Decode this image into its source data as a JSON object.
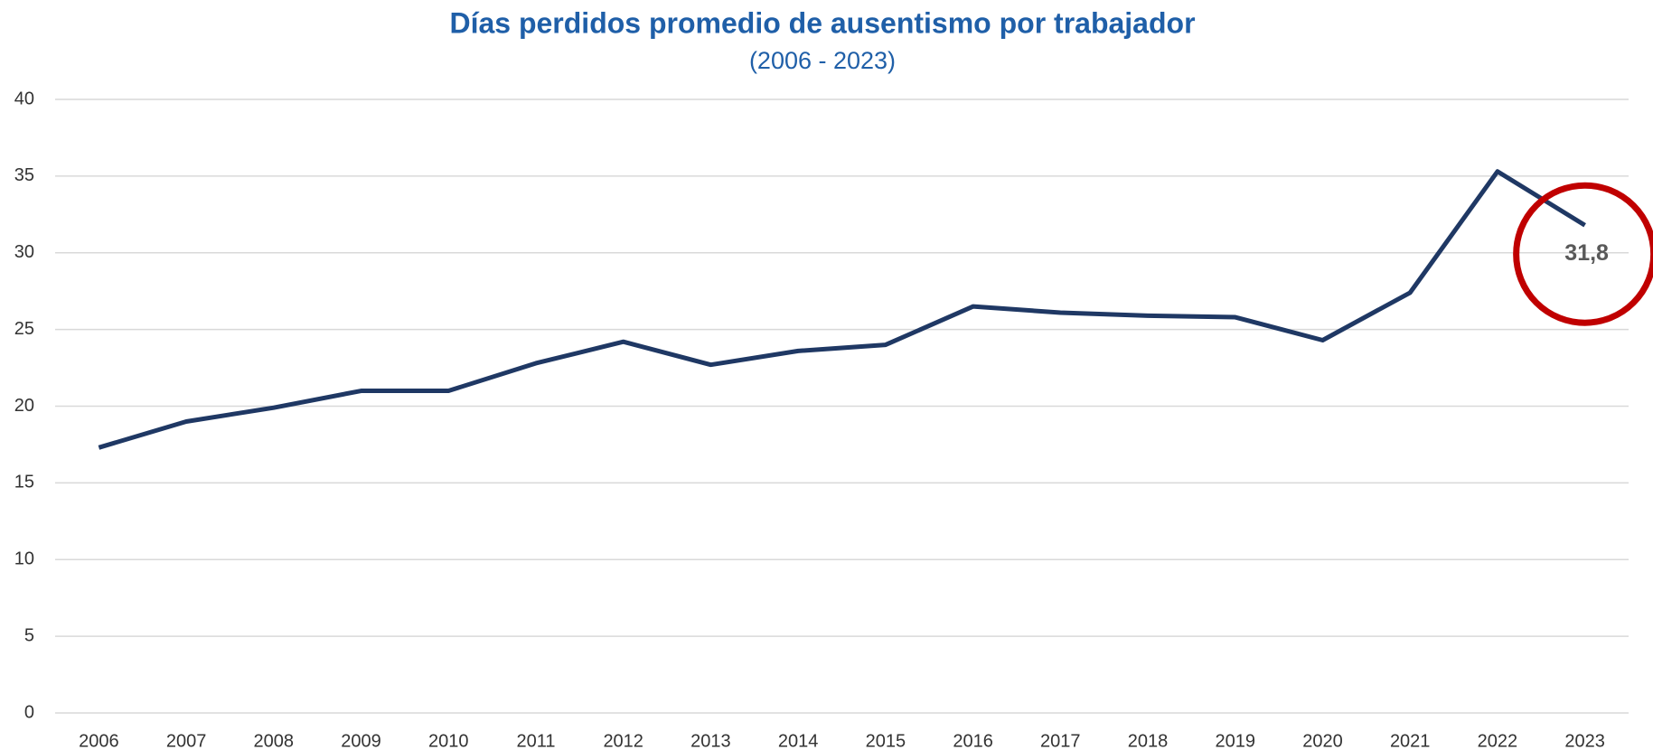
{
  "chart_data": {
    "type": "line",
    "title": "Días perdidos promedio de ausentismo por trabajador",
    "subtitle": "(2006 - 2023)",
    "categories": [
      "2006",
      "2007",
      "2008",
      "2009",
      "2010",
      "2011",
      "2012",
      "2013",
      "2014",
      "2015",
      "2016",
      "2017",
      "2018",
      "2019",
      "2020",
      "2021",
      "2022",
      "2023"
    ],
    "series": [
      {
        "name": "Días perdidos promedio",
        "color": "#1f3864",
        "values": [
          17.3,
          19.0,
          19.9,
          21.0,
          21.0,
          22.8,
          24.2,
          22.7,
          23.6,
          24.0,
          26.5,
          26.1,
          25.9,
          25.8,
          24.3,
          27.4,
          35.3,
          31.8
        ],
        "value_labels": [
          null,
          null,
          null,
          null,
          null,
          null,
          null,
          null,
          null,
          null,
          null,
          null,
          null,
          null,
          null,
          null,
          null,
          "31,8"
        ]
      }
    ],
    "ylim": [
      0,
      40
    ],
    "yticks": [
      0,
      5,
      10,
      15,
      20,
      25,
      30,
      35,
      40
    ],
    "grid": true
  }
}
